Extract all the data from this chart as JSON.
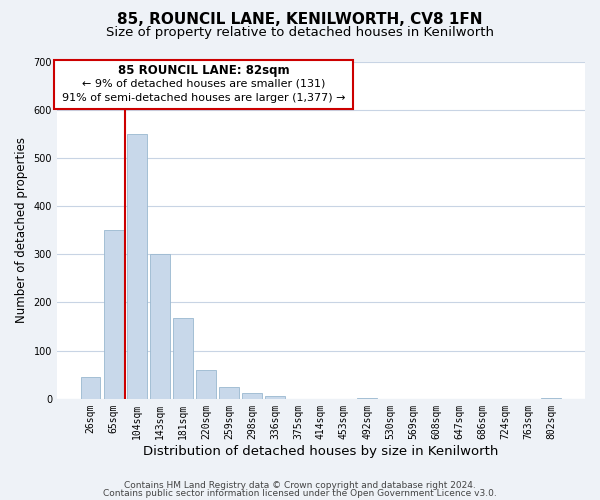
{
  "title": "85, ROUNCIL LANE, KENILWORTH, CV8 1FN",
  "subtitle": "Size of property relative to detached houses in Kenilworth",
  "xlabel": "Distribution of detached houses by size in Kenilworth",
  "ylabel": "Number of detached properties",
  "bar_labels": [
    "26sqm",
    "65sqm",
    "104sqm",
    "143sqm",
    "181sqm",
    "220sqm",
    "259sqm",
    "298sqm",
    "336sqm",
    "375sqm",
    "414sqm",
    "453sqm",
    "492sqm",
    "530sqm",
    "569sqm",
    "608sqm",
    "647sqm",
    "686sqm",
    "724sqm",
    "763sqm",
    "802sqm"
  ],
  "bar_values": [
    45,
    350,
    550,
    300,
    168,
    60,
    25,
    12,
    5,
    0,
    0,
    0,
    2,
    0,
    0,
    0,
    0,
    0,
    0,
    0,
    2
  ],
  "bar_color": "#c8d8ea",
  "bar_edge_color": "#9ab8d0",
  "ylim": [
    0,
    700
  ],
  "yticks": [
    0,
    100,
    200,
    300,
    400,
    500,
    600,
    700
  ],
  "property_line_color": "#cc0000",
  "annotation_title": "85 ROUNCIL LANE: 82sqm",
  "annotation_line1": "← 9% of detached houses are smaller (131)",
  "annotation_line2": "91% of semi-detached houses are larger (1,377) →",
  "footer_line1": "Contains HM Land Registry data © Crown copyright and database right 2024.",
  "footer_line2": "Contains public sector information licensed under the Open Government Licence v3.0.",
  "background_color": "#eef2f7",
  "plot_bg_color": "#ffffff",
  "grid_color": "#c8d4e4",
  "title_fontsize": 11,
  "subtitle_fontsize": 9.5,
  "xlabel_fontsize": 9.5,
  "ylabel_fontsize": 8.5,
  "tick_fontsize": 7,
  "footer_fontsize": 6.5
}
